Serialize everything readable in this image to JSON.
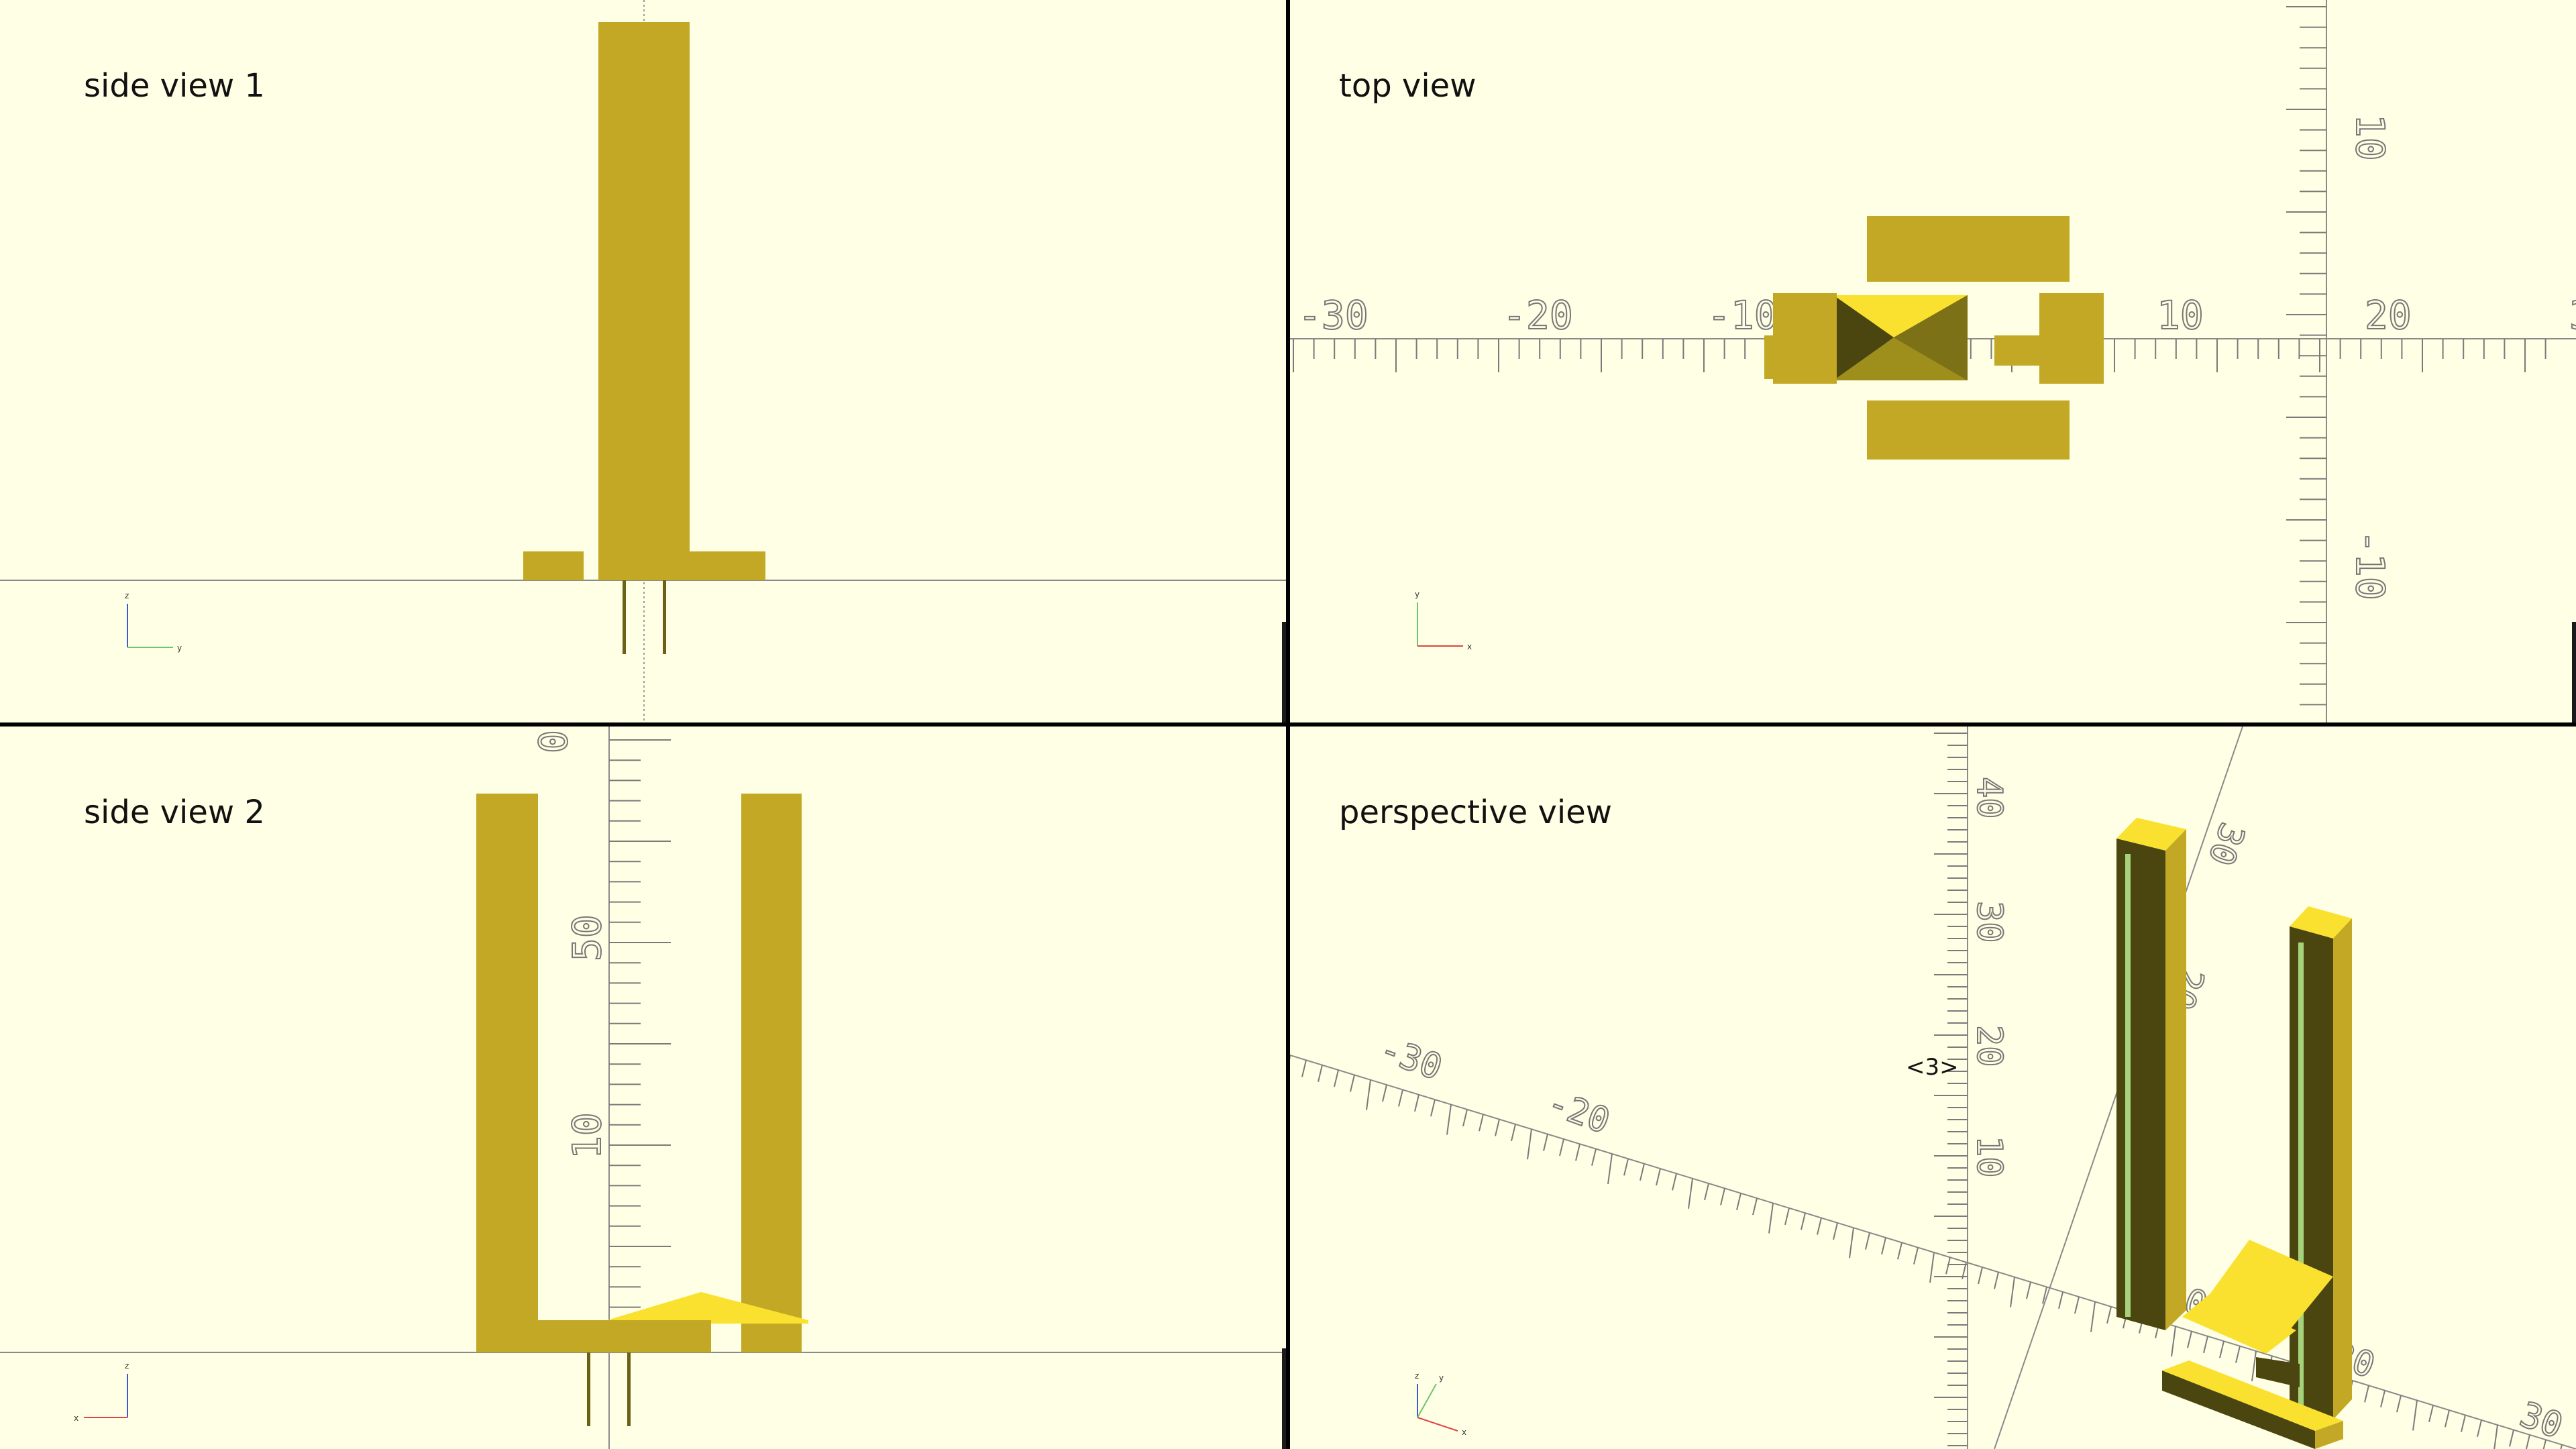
{
  "views": {
    "side1": {
      "title": "side view 1"
    },
    "top": {
      "title": "top view"
    },
    "side2": {
      "title": "side view 2"
    },
    "perspective": {
      "title": "perspective view",
      "marker": "<3>"
    }
  },
  "axis_ticks": {
    "top_x": [
      "-30",
      "-20",
      "-10",
      "10",
      "20",
      "3"
    ],
    "top_y": [
      "10",
      "-10"
    ],
    "side2_z": [
      "0",
      "50",
      "10"
    ],
    "persp_z": [
      "40",
      "30",
      "20",
      "10"
    ],
    "persp_x": [
      "-30",
      "-20",
      "10",
      "20",
      "30"
    ],
    "persp_y": [
      "30",
      "20"
    ]
  },
  "axis_gizmo": {
    "x": "x",
    "y": "y",
    "z": "z"
  },
  "colors": {
    "background": "#ffffe5",
    "model_side": "#c2a824",
    "model_top": "#fae12f",
    "model_dark": "#4b4510",
    "model_mid": "#9e8f1c",
    "axis": "#6a6a6a",
    "highlight_green": "#a5d27a"
  }
}
